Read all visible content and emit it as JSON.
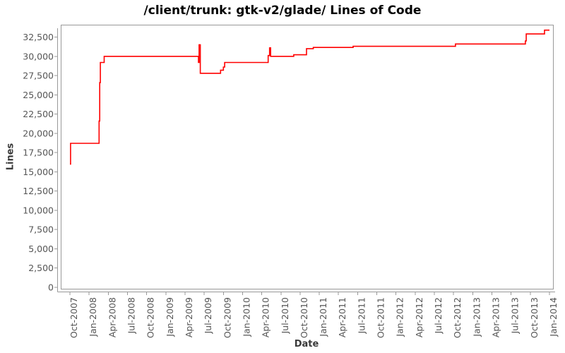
{
  "chart_data": {
    "type": "line",
    "subtype": "step-after",
    "title": "/client/trunk: gtk-v2/glade/ Lines of Code",
    "xlabel": "Date",
    "ylabel": "Lines",
    "legend": "none",
    "grid": "off",
    "line_color": "#ff0000",
    "axis_color": "#999999",
    "tick_label_color": "#555555",
    "plot_background": "#ffffff",
    "ylim": [
      0,
      34200
    ],
    "y_tick_labels": [
      "0",
      "2,500",
      "5,000",
      "7,500",
      "10,000",
      "12,500",
      "15,000",
      "17,500",
      "20,000",
      "22,500",
      "25,000",
      "27,500",
      "30,000",
      "32,500"
    ],
    "x_tick_labels": [
      "Oct-2007",
      "Jan-2008",
      "Apr-2008",
      "Jul-2008",
      "Oct-2008",
      "Jan-2009",
      "Apr-2009",
      "Jul-2009",
      "Oct-2009",
      "Jan-2010",
      "Apr-2010",
      "Jul-2010",
      "Oct-2010",
      "Jan-2011",
      "Apr-2011",
      "Jul-2011",
      "Oct-2011",
      "Jan-2012",
      "Apr-2012",
      "Jul-2012",
      "Oct-2012",
      "Jan-2013",
      "Apr-2013",
      "Jul-2013",
      "Oct-2013",
      "Jan-2014"
    ],
    "series": [
      {
        "name": "Lines of Code",
        "points": [
          [
            "2007-10-01",
            16000
          ],
          [
            "2007-10-04",
            18700
          ],
          [
            "2008-02-18",
            21600
          ],
          [
            "2008-02-21",
            26600
          ],
          [
            "2008-02-24",
            29200
          ],
          [
            "2008-03-12",
            30000
          ],
          [
            "2009-06-04",
            29200
          ],
          [
            "2009-06-07",
            31500
          ],
          [
            "2009-06-13",
            27800
          ],
          [
            "2009-09-18",
            28200
          ],
          [
            "2009-10-01",
            28600
          ],
          [
            "2009-10-07",
            29200
          ],
          [
            "2010-05-01",
            30100
          ],
          [
            "2010-05-08",
            31100
          ],
          [
            "2010-05-13",
            30000
          ],
          [
            "2010-09-01",
            30200
          ],
          [
            "2010-11-01",
            31000
          ],
          [
            "2010-12-03",
            31150
          ],
          [
            "2011-06-10",
            31300
          ],
          [
            "2012-10-10",
            31600
          ],
          [
            "2013-09-08",
            32000
          ],
          [
            "2013-09-12",
            32900
          ],
          [
            "2013-12-08",
            33400
          ],
          [
            "2014-01-01",
            33400
          ]
        ]
      }
    ]
  }
}
